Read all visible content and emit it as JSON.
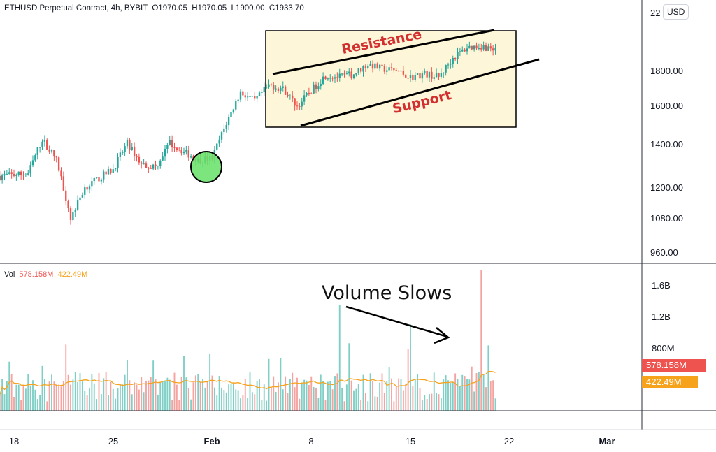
{
  "header": {
    "symbol": "ETHUSD Perpetual Contract, 4h, BYBIT",
    "open": "O1970.05",
    "high": "H1970.05",
    "low": "L1900.00",
    "close": "C1933.70"
  },
  "volume_legend": {
    "label": "Vol",
    "value1": "578.158M",
    "value2": "422.49M"
  },
  "currency_button": "USD",
  "price_axis": {
    "top_partial": "22",
    "ticks": [
      "1800.00",
      "1600.00",
      "1400.00",
      "1200.00",
      "1080.00",
      "960.00"
    ]
  },
  "volume_axis": {
    "ticks": [
      "1.6B",
      "1.2B",
      "800M"
    ],
    "tag_current": "578.158M",
    "tag_ma": "422.49M"
  },
  "time_axis": {
    "ticks": [
      "18",
      "25",
      "Feb",
      "8",
      "15",
      "22",
      "Mar"
    ]
  },
  "annotations": {
    "resistance": "Resistance",
    "support": "Support",
    "volume_slows": "Volume Slows"
  },
  "colors": {
    "up": "#26a69a",
    "down": "#ef5350",
    "vol_up": "#7fcfc6",
    "vol_down": "#f5a3a1",
    "ma": "#f7a21b",
    "annotation_red": "#d32f2f",
    "box_fill": "#fdf6d8",
    "circle": "#66e066"
  },
  "chart_data": [
    {
      "type": "candlestick",
      "timeframe": "4h",
      "x_range": [
        "Jan 17",
        "Mar 2"
      ],
      "y_scale": "log",
      "ylim": [
        930,
        2230
      ],
      "close_path_approx": [
        {
          "x": "Jan 17",
          "y": 1250
        },
        {
          "x": "Jan 19",
          "y": 1260
        },
        {
          "x": "Jan 20",
          "y": 1420
        },
        {
          "x": "Jan 21",
          "y": 1320
        },
        {
          "x": "Jan 22",
          "y": 1080
        },
        {
          "x": "Jan 23",
          "y": 1200
        },
        {
          "x": "Jan 25",
          "y": 1280
        },
        {
          "x": "Jan 26",
          "y": 1400
        },
        {
          "x": "Jan 27",
          "y": 1300
        },
        {
          "x": "Jan 28",
          "y": 1290
        },
        {
          "x": "Jan 29",
          "y": 1400
        },
        {
          "x": "Jan 30",
          "y": 1360
        },
        {
          "x": "Jan 31",
          "y": 1320
        },
        {
          "x": "Feb 1",
          "y": 1330
        },
        {
          "x": "Feb 2",
          "y": 1500
        },
        {
          "x": "Feb 3",
          "y": 1670
        },
        {
          "x": "Feb 4",
          "y": 1620
        },
        {
          "x": "Feb 5",
          "y": 1710
        },
        {
          "x": "Feb 6",
          "y": 1690
        },
        {
          "x": "Feb 7",
          "y": 1590
        },
        {
          "x": "Feb 8",
          "y": 1680
        },
        {
          "x": "Feb 9",
          "y": 1770
        },
        {
          "x": "Feb 10",
          "y": 1760
        },
        {
          "x": "Feb 11",
          "y": 1780
        },
        {
          "x": "Feb 12",
          "y": 1840
        },
        {
          "x": "Feb 13",
          "y": 1810
        },
        {
          "x": "Feb 14",
          "y": 1800
        },
        {
          "x": "Feb 15",
          "y": 1760
        },
        {
          "x": "Feb 16",
          "y": 1780
        },
        {
          "x": "Feb 17",
          "y": 1760
        },
        {
          "x": "Feb 18",
          "y": 1880
        },
        {
          "x": "Feb 19",
          "y": 1950
        },
        {
          "x": "Feb 20",
          "y": 1960
        },
        {
          "x": "Feb 21",
          "y": 1933.7
        }
      ],
      "annotations": [
        "Resistance",
        "Support"
      ]
    },
    {
      "type": "bar",
      "name": "Vol",
      "x_range": [
        "Jan 17",
        "Mar 2"
      ],
      "ylim": [
        0,
        1800000000
      ],
      "last_volume": "578.158M",
      "volume_ma": "422.49M",
      "notable_spikes": [
        {
          "x": "Feb 10",
          "value": 1350000000
        },
        {
          "x": "Feb 15",
          "value": 1100000000
        },
        {
          "x": "Feb 20",
          "value": 1820000000
        }
      ],
      "annotations": [
        "Volume Slows"
      ]
    }
  ]
}
